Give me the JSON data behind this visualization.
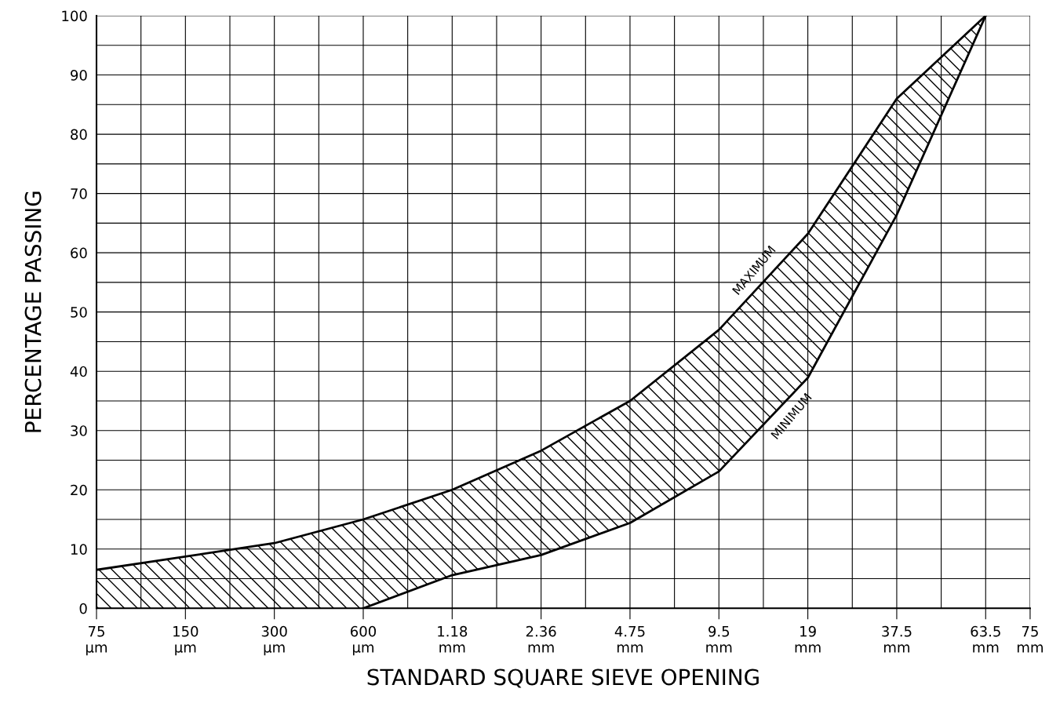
{
  "chart_data": {
    "type": "area",
    "xlabel": "STANDARD SQUARE SIEVE OPENING",
    "ylabel": "PERCENTAGE PASSING",
    "categories": [
      "75\nµm",
      null,
      "150\nµm",
      null,
      "300\nµm",
      null,
      "600\nµm",
      null,
      "1.18\nmm",
      null,
      "2.36\nmm",
      null,
      "4.75\nmm",
      null,
      "9.5\nmm",
      null,
      "19\nmm",
      null,
      "37.5\nmm",
      null,
      "63.5\nmm",
      "75\nmm"
    ],
    "series": [
      {
        "name": "MAXIMUM",
        "color": "#000000",
        "values": [
          6.5,
          null,
          null,
          null,
          11,
          null,
          15,
          null,
          20,
          null,
          26.6,
          null,
          35,
          null,
          47,
          null,
          63.2,
          null,
          86,
          null,
          100,
          null
        ]
      },
      {
        "name": "MINIMUM",
        "color": "#000000",
        "type": "line",
        "values": [
          null,
          null,
          null,
          null,
          null,
          null,
          0,
          null,
          5.6,
          null,
          9,
          null,
          14.4,
          null,
          23.1,
          null,
          38.9,
          null,
          66.4,
          null,
          100,
          null
        ]
      }
    ],
    "ylim": [
      0,
      100
    ],
    "yticks": [
      0,
      {
        "value": 5,
        "label": null
      },
      10,
      {
        "value": 15,
        "label": null
      },
      20,
      {
        "value": 25,
        "label": null
      },
      30,
      {
        "value": 35,
        "label": null
      },
      40,
      {
        "value": 45,
        "label": null
      },
      50,
      {
        "value": 55,
        "label": null
      },
      60,
      {
        "value": 65,
        "label": null
      },
      70,
      {
        "value": 75,
        "label": null
      },
      80,
      {
        "value": 85,
        "label": null
      },
      90,
      {
        "value": 95,
        "label": null
      },
      100
    ],
    "grid": true
  }
}
